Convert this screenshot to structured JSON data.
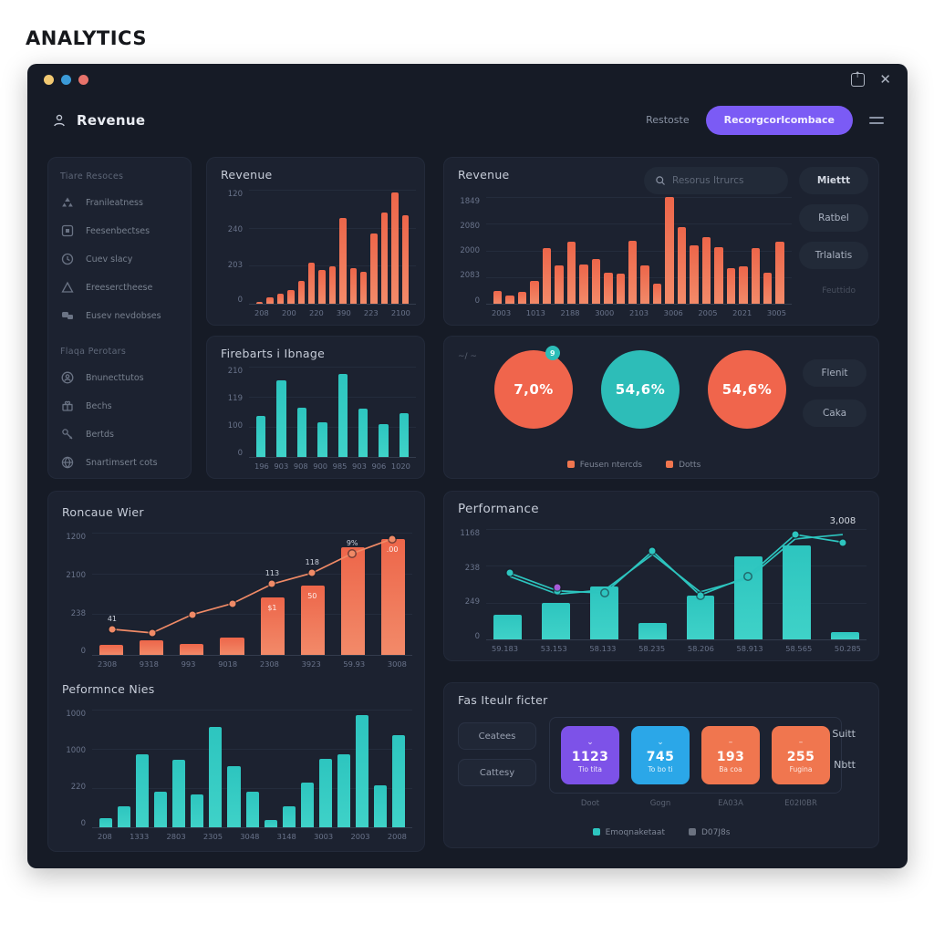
{
  "page": {
    "title": "ANALYTICS"
  },
  "colors": {
    "accent_purple": "#7b5bf5",
    "bar_red": "#ed664a",
    "bar_teal": "#2dc5bf",
    "card_purple": "#7d52e8",
    "card_blue": "#2ba7e8",
    "card_orange": "#f0764f",
    "dot_yellow": "#f2c972",
    "dot_blue": "#3b9bd8",
    "dot_red": "#e8736b"
  },
  "titlebar": {
    "close_icon": "✕"
  },
  "header": {
    "title": "Revenue",
    "link": "Restoste",
    "cta": "Recorgcorlcombace"
  },
  "sidebar": {
    "sections": [
      {
        "label": "Tiare Resoces",
        "items": [
          {
            "icon": "pyramid-icon",
            "label": "Franileatness"
          },
          {
            "icon": "image-icon",
            "label": "Feesenbectses"
          },
          {
            "icon": "clock-icon",
            "label": "Cuev slacy"
          },
          {
            "icon": "triangle-icon",
            "label": "Ereeserctheese"
          },
          {
            "icon": "chat-icon",
            "label": "Eusev nevdobses"
          }
        ]
      },
      {
        "label": "Flaqa Perotars",
        "items": [
          {
            "icon": "person-circle-icon",
            "label": "Bnunecttutos"
          },
          {
            "icon": "gift-icon",
            "label": "Bechs"
          },
          {
            "icon": "key-icon",
            "label": "Bertds"
          },
          {
            "icon": "globe-icon",
            "label": "Snartimsert cots"
          }
        ]
      }
    ]
  },
  "panels": {
    "rev_small": {
      "title": "Revenue"
    },
    "usage": {
      "title": "Firebarts i Ibnage"
    },
    "rev_big": {
      "title": "Revenue",
      "search_placeholder": "Resorus Itrurcs",
      "buttons": [
        "Miettt",
        "Ratbel",
        "Trlalatis"
      ],
      "faint": "Feuttido"
    },
    "circles": {
      "note": "~/ ~",
      "stats": [
        {
          "value": "7,0%",
          "color": "orange",
          "badge": "9"
        },
        {
          "value": "54,6%",
          "color": "teal",
          "badge": ""
        },
        {
          "value": "54,6%",
          "color": "orange",
          "badge": ""
        }
      ],
      "buttons": [
        "Flenit",
        "Caka"
      ],
      "legend": [
        {
          "color": "#f0764f",
          "label": "Feusen ntercds"
        },
        {
          "color": "#f0764f",
          "label": "Dotts"
        }
      ]
    },
    "rev_view": {
      "title": "Roncaue Wier"
    },
    "perf_nies": {
      "title": "Peformnce Nies"
    },
    "performance": {
      "title": "Performance"
    },
    "filter": {
      "title": "Fas Iteulr ficter",
      "left_buttons": [
        "Ceatees",
        "Cattesy"
      ],
      "right_buttons": [
        "Suitt",
        "Nbtt"
      ],
      "cards": [
        {
          "value": "1123",
          "label": "Tio tita",
          "caption": "Doot",
          "color": "#7d52e8",
          "icon": "chevron-down-icon",
          "chev": "⌄"
        },
        {
          "value": "745",
          "label": "To bo ti",
          "caption": "Gogn",
          "color": "#2ba7e8",
          "icon": "chevron-down-icon",
          "chev": "⌄"
        },
        {
          "value": "193",
          "label": "Ba coa",
          "caption": "EA03A",
          "color": "#f0764f",
          "icon": "dash-icon",
          "chev": "–"
        },
        {
          "value": "255",
          "label": "Fugina",
          "caption": "E02I0BR",
          "color": "#f0764f",
          "icon": "dash-icon",
          "chev": "–"
        }
      ],
      "legend": [
        {
          "color": "#2dc5bf",
          "label": "Emoqnaketaat"
        },
        {
          "color": "#6b7280",
          "label": "D07J8s"
        }
      ]
    }
  },
  "chart_data": [
    {
      "type": "bar",
      "title": "Revenue",
      "color": "red",
      "gap": 4,
      "yticks": [
        "120",
        "240",
        "203",
        "0"
      ],
      "categories": [
        "208",
        "200",
        "220",
        "390",
        "223",
        "2100"
      ],
      "values": [
        2,
        6,
        9,
        12,
        20,
        36,
        30,
        33,
        75,
        31,
        28,
        62,
        80,
        98,
        78
      ],
      "ylim": [
        0,
        100
      ],
      "grid": true
    },
    {
      "type": "bar",
      "title": "Firebarts i Ibnage",
      "color": "teal",
      "gap": 12,
      "yticks": [
        "210",
        "119",
        "100",
        "0"
      ],
      "categories": [
        "196",
        "903",
        "908",
        "900",
        "985",
        "903",
        "906",
        "1020"
      ],
      "values": [
        45,
        85,
        55,
        38,
        92,
        54,
        36,
        48
      ],
      "ylim": [
        0,
        100
      ],
      "grid": true
    },
    {
      "type": "bar",
      "title": "Revenue",
      "color": "red",
      "gap": 4,
      "yticks": [
        "1849",
        "2080",
        "2000",
        "2083",
        "0"
      ],
      "categories": [
        "2003",
        "1013",
        "2188",
        "3000",
        "2103",
        "3006",
        "2005",
        "2021",
        "3005"
      ],
      "values": [
        12,
        8,
        11,
        21,
        52,
        36,
        58,
        37,
        42,
        29,
        28,
        59,
        36,
        19,
        100,
        72,
        55,
        62,
        53,
        33,
        35,
        52,
        29,
        58
      ],
      "ylim": [
        0,
        100
      ],
      "grid": true
    },
    {
      "type": "combo",
      "title": "Roncaue Wier",
      "color": "red",
      "gap": 18,
      "yticks": [
        "1200",
        "2100",
        "238",
        "0"
      ],
      "categories": [
        "2308",
        "9318",
        "993",
        "9018",
        "2308",
        "3923",
        "59.93",
        "3008"
      ],
      "values": [
        8,
        12,
        9,
        14,
        47,
        57,
        88,
        95
      ],
      "line": [
        21,
        18,
        33,
        42,
        58,
        67,
        83,
        95
      ],
      "line_color": "#f08a66",
      "markers": true,
      "line_labels": [
        "41",
        "",
        "",
        "",
        "113",
        "118",
        "9%",
        ""
      ],
      "bar_labels": [
        "",
        "",
        "",
        "",
        "$1",
        "50",
        "",
        ".00"
      ],
      "ylim": [
        0,
        100
      ],
      "grid": true
    },
    {
      "type": "combo",
      "title": "Performance",
      "color": "teal",
      "gap": 22,
      "yticks": [
        "1168",
        "238",
        "249",
        "0"
      ],
      "categories": [
        "59.183",
        "53.153",
        "58.133",
        "58.235",
        "58.206",
        "58.913",
        "58.565",
        "50.285"
      ],
      "values": [
        22,
        33,
        48,
        15,
        40,
        75,
        85,
        7
      ],
      "line": [
        60,
        44,
        42,
        80,
        40,
        57,
        95,
        88
      ],
      "line2": [
        57,
        41,
        45,
        77,
        43,
        55,
        91,
        95
      ],
      "line_color": "#2dc5bf",
      "markers": true,
      "annotation": {
        "index": 7,
        "text": "3,008",
        "y": 95
      },
      "extra_marker": {
        "index": 1,
        "y": 47,
        "color": "#a65bd8"
      },
      "ylim": [
        0,
        100
      ],
      "grid": true
    },
    {
      "type": "bar",
      "title": "Peformnce Nies",
      "color": "teal",
      "gap": 6,
      "yticks": [
        "1000",
        "1000",
        "220",
        "0"
      ],
      "categories": [
        "208",
        "1333",
        "2803",
        "2305",
        "3048",
        "3148",
        "3003",
        "2003",
        "2008"
      ],
      "values": [
        8,
        18,
        62,
        30,
        57,
        28,
        85,
        52,
        30,
        6,
        18,
        38,
        58,
        62,
        95,
        36,
        78
      ],
      "ylim": [
        0,
        100
      ],
      "grid": true
    }
  ]
}
